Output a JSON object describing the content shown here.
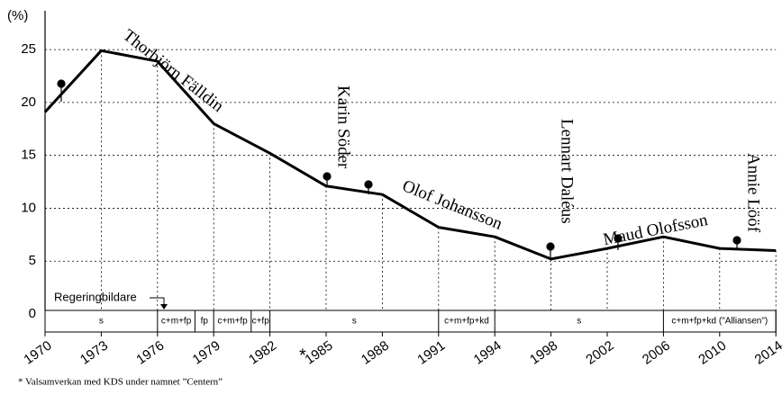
{
  "chart_data": {
    "type": "line",
    "y_unit": "(%)",
    "categories": [
      "1970",
      "1973",
      "1976",
      "1979",
      "1982",
      "1985",
      "1988",
      "1991",
      "1994",
      "1998",
      "2002",
      "2006",
      "2010",
      "2014"
    ],
    "values": [
      19.1,
      24.9,
      23.9,
      18.0,
      15.2,
      12.1,
      11.3,
      8.2,
      7.3,
      5.2,
      6.2,
      7.3,
      6.2,
      6.0
    ],
    "color": "#000000",
    "ylim": [
      0,
      28.5
    ],
    "yticks": [
      0,
      5,
      10,
      15,
      20,
      25
    ],
    "grid": true,
    "leaders": [
      "Thorbjörn Fälldin",
      "Karin Söder",
      "Olof Johansson",
      "Lennart Daléus",
      "Maud Olofsson",
      "Annie Lööf"
    ],
    "governments": [
      {
        "label": "s",
        "from": 1970,
        "to": 1976
      },
      {
        "label": "c+m+fp",
        "from": 1976,
        "to": 1978
      },
      {
        "label": "fp",
        "from": 1978,
        "to": 1979
      },
      {
        "label": "c+m+fp",
        "from": 1979,
        "to": 1981
      },
      {
        "label": "c+fp",
        "from": 1981,
        "to": 1982
      },
      {
        "label": "s",
        "from": 1982,
        "to": 1991
      },
      {
        "label": "c+m+fp+kd",
        "from": 1991,
        "to": 1994
      },
      {
        "label": "s",
        "from": 1994,
        "to": 2006
      },
      {
        "label": "c+m+fp+kd (\"Alliansen\")",
        "from": 2006,
        "to": 2014
      }
    ],
    "government_label": "Regeringbildare",
    "asterisk": "*",
    "footnote": "* Valsamverkan med KDS under namnet ”Centern”"
  }
}
